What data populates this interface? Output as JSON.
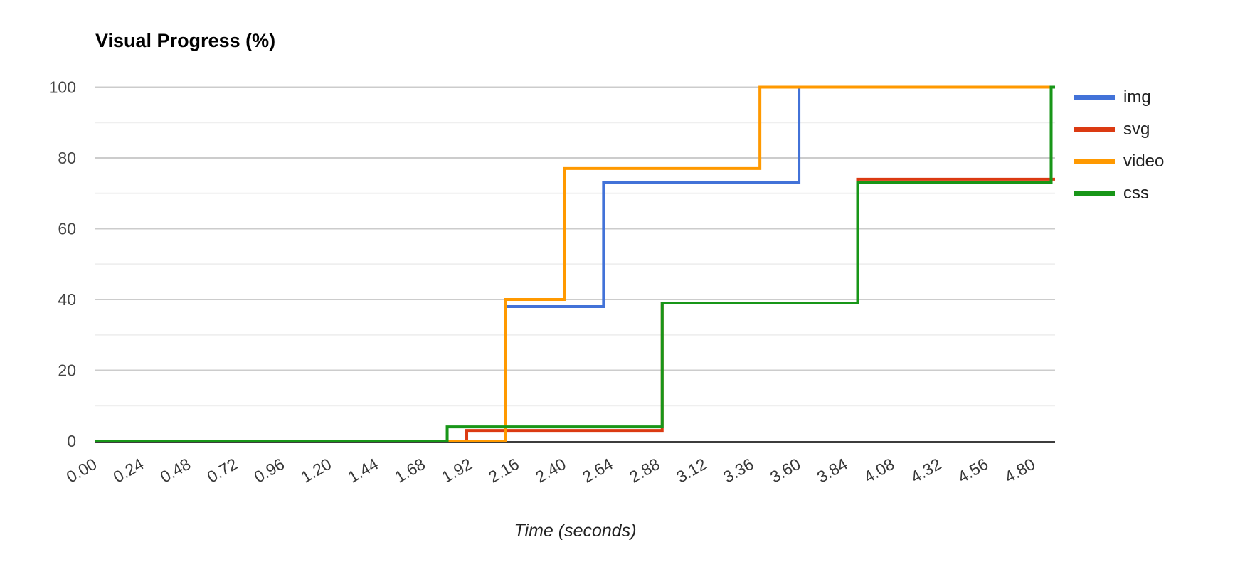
{
  "chart_data": {
    "type": "line",
    "subtype": "step",
    "title": "Visual Progress (%)",
    "xlabel": "Time (seconds)",
    "ylabel": "Visual Progress (%)",
    "grid": "on",
    "legend_position": "right",
    "xlim": [
      0,
      4.91
    ],
    "ylim": [
      0,
      100
    ],
    "x_tick_interval": 0.24,
    "x_ticks": [
      "0.00",
      "0.24",
      "0.48",
      "0.72",
      "0.96",
      "1.20",
      "1.44",
      "1.68",
      "1.92",
      "2.16",
      "2.40",
      "2.64",
      "2.88",
      "3.12",
      "3.36",
      "3.60",
      "3.84",
      "4.08",
      "4.32",
      "4.56",
      "4.80"
    ],
    "y_ticks": [
      0,
      20,
      40,
      60,
      80,
      100
    ],
    "y_minor_ticks": [
      10,
      30,
      50,
      70,
      90
    ],
    "series": [
      {
        "name": "img",
        "color": "#4272d8",
        "points": [
          [
            0,
            0
          ],
          [
            2.1,
            0
          ],
          [
            2.1,
            38
          ],
          [
            2.6,
            38
          ],
          [
            2.6,
            73
          ],
          [
            3.6,
            73
          ],
          [
            3.6,
            100
          ],
          [
            4.91,
            100
          ]
        ]
      },
      {
        "name": "svg",
        "color": "#db3a12",
        "points": [
          [
            0,
            0
          ],
          [
            1.9,
            0
          ],
          [
            1.9,
            3
          ],
          [
            2.9,
            3
          ],
          [
            2.9,
            39
          ],
          [
            3.9,
            39
          ],
          [
            3.9,
            74
          ],
          [
            4.91,
            74
          ]
        ]
      },
      {
        "name": "video",
        "color": "#ff9900",
        "points": [
          [
            0,
            0
          ],
          [
            2.1,
            0
          ],
          [
            2.1,
            40
          ],
          [
            2.4,
            40
          ],
          [
            2.4,
            77
          ],
          [
            3.4,
            77
          ],
          [
            3.4,
            100
          ],
          [
            4.91,
            100
          ]
        ]
      },
      {
        "name": "css",
        "color": "#189618",
        "points": [
          [
            0,
            0
          ],
          [
            1.8,
            0
          ],
          [
            1.8,
            4
          ],
          [
            2.9,
            4
          ],
          [
            2.9,
            39
          ],
          [
            3.9,
            39
          ],
          [
            3.9,
            73
          ],
          [
            4.89,
            73
          ],
          [
            4.89,
            100
          ],
          [
            4.91,
            100
          ]
        ]
      }
    ],
    "colors": {
      "major_gridline": "#cccccc",
      "minor_gridline": "#efefef",
      "axis_line": "#3c3c3c",
      "tick_label": "#444444"
    }
  }
}
